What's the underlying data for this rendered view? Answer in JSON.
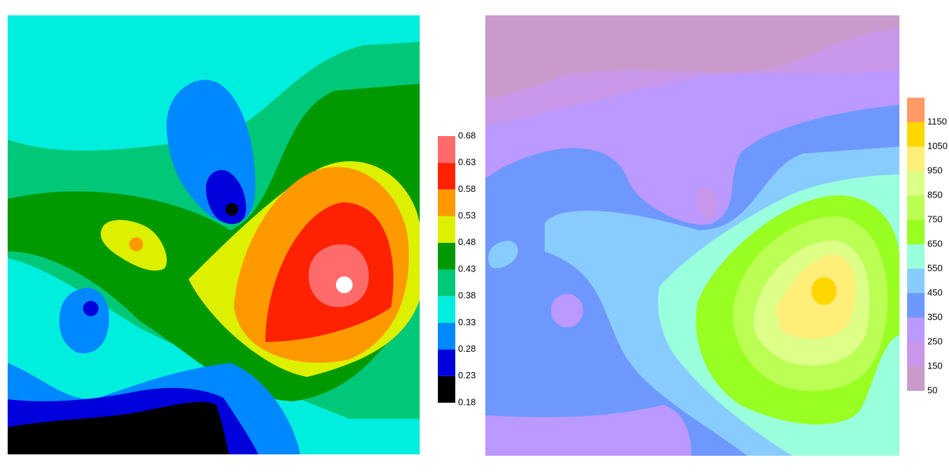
{
  "chart_data": [
    {
      "type": "contour",
      "ylim": [
        0.18,
        0.68
      ],
      "yticks": [
        0.18,
        0.23,
        0.28,
        0.33,
        0.38,
        0.43,
        0.48,
        0.53,
        0.58,
        0.63,
        0.68
      ],
      "colors": [
        "#000000",
        "#0000dd",
        "#0088ff",
        "#00eedd",
        "#00c878",
        "#009900",
        "#ddf000",
        "#ff9900",
        "#ff2200",
        "#ff6b6b"
      ]
    },
    {
      "type": "contour",
      "ylim": [
        50,
        1250
      ],
      "yticks": [
        50,
        150,
        250,
        350,
        450,
        550,
        650,
        750,
        850,
        950,
        1050,
        1150
      ],
      "colors": [
        "#c99acb",
        "#c997ea",
        "#bb99ff",
        "#6f98ff",
        "#88ccff",
        "#99ffdd",
        "#99ff22",
        "#bbff55",
        "#ddff88",
        "#ffee77",
        "#ffd700",
        "#ff9966"
      ]
    }
  ]
}
